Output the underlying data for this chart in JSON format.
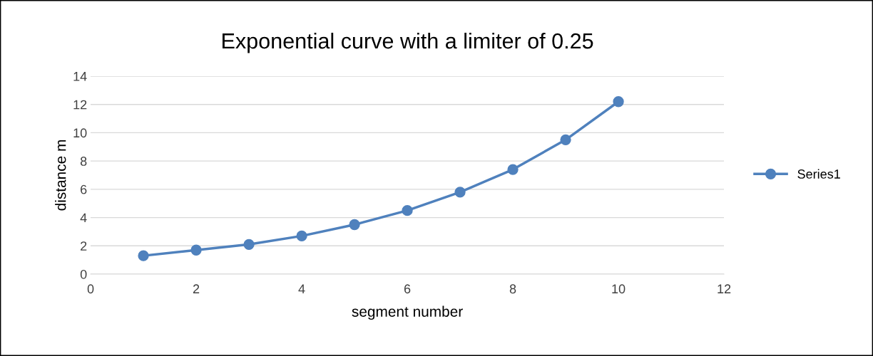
{
  "chart_data": {
    "type": "line",
    "title": "Exponential curve with a limiter of 0.25",
    "xlabel": "segment number",
    "ylabel": "distance m",
    "x": [
      1,
      2,
      3,
      4,
      5,
      6,
      7,
      8,
      9,
      10
    ],
    "series": [
      {
        "name": "Series1",
        "color": "#4f81bd",
        "values": [
          1.3,
          1.7,
          2.1,
          2.7,
          3.5,
          4.5,
          5.8,
          7.4,
          9.5,
          12.2
        ]
      }
    ],
    "xlim": [
      0,
      12
    ],
    "xticks": [
      0,
      2,
      4,
      6,
      8,
      10,
      12
    ],
    "ylim": [
      0,
      14
    ],
    "yticks": [
      0,
      2,
      4,
      6,
      8,
      10,
      12,
      14
    ],
    "grid": "y",
    "legend": "right",
    "marker": "circle",
    "line_style": "solid"
  }
}
